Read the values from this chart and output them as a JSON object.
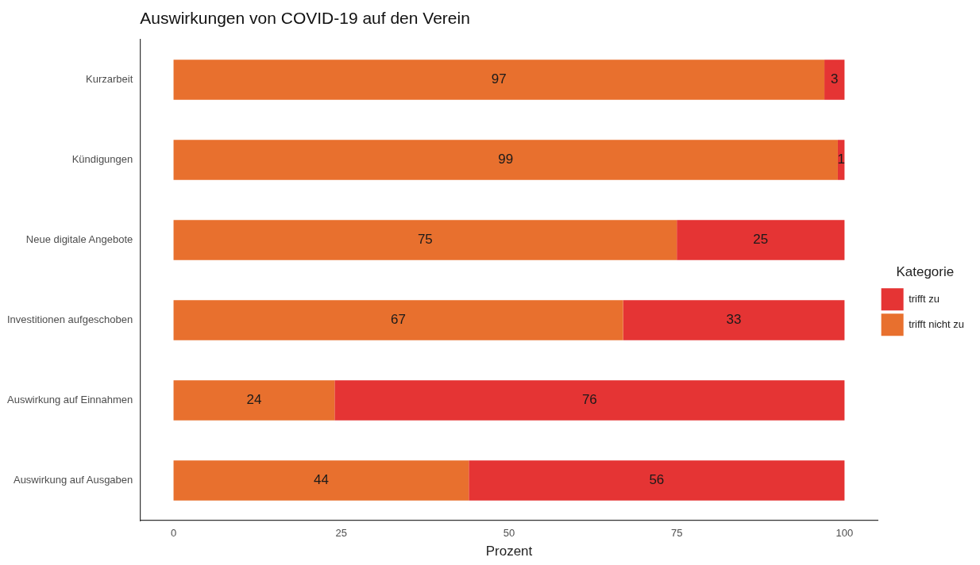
{
  "chart_data": {
    "type": "bar",
    "orientation": "horizontal",
    "stacked": true,
    "title": "Auswirkungen von COVID-19 auf den Verein",
    "xlabel": "Prozent",
    "legend_title": "Kategorie",
    "legend": "right",
    "categories": [
      "Kurzarbeit",
      "Kündigungen",
      "Neue digitale Angebote",
      "Investitionen aufgeschoben",
      "Auswirkung auf Einnahmen",
      "Auswirkung auf Ausgaben"
    ],
    "series": [
      {
        "name": "trifft nicht zu",
        "color": "#e8702e",
        "values": [
          97,
          99,
          75,
          67,
          24,
          44
        ]
      },
      {
        "name": "trifft zu",
        "color": "#e53434",
        "values": [
          3,
          1,
          25,
          33,
          76,
          56
        ]
      }
    ],
    "xlim": [
      -5,
      105
    ],
    "xticks": [
      0,
      25,
      50,
      75,
      100
    ],
    "grid": false,
    "data_labels": true
  }
}
